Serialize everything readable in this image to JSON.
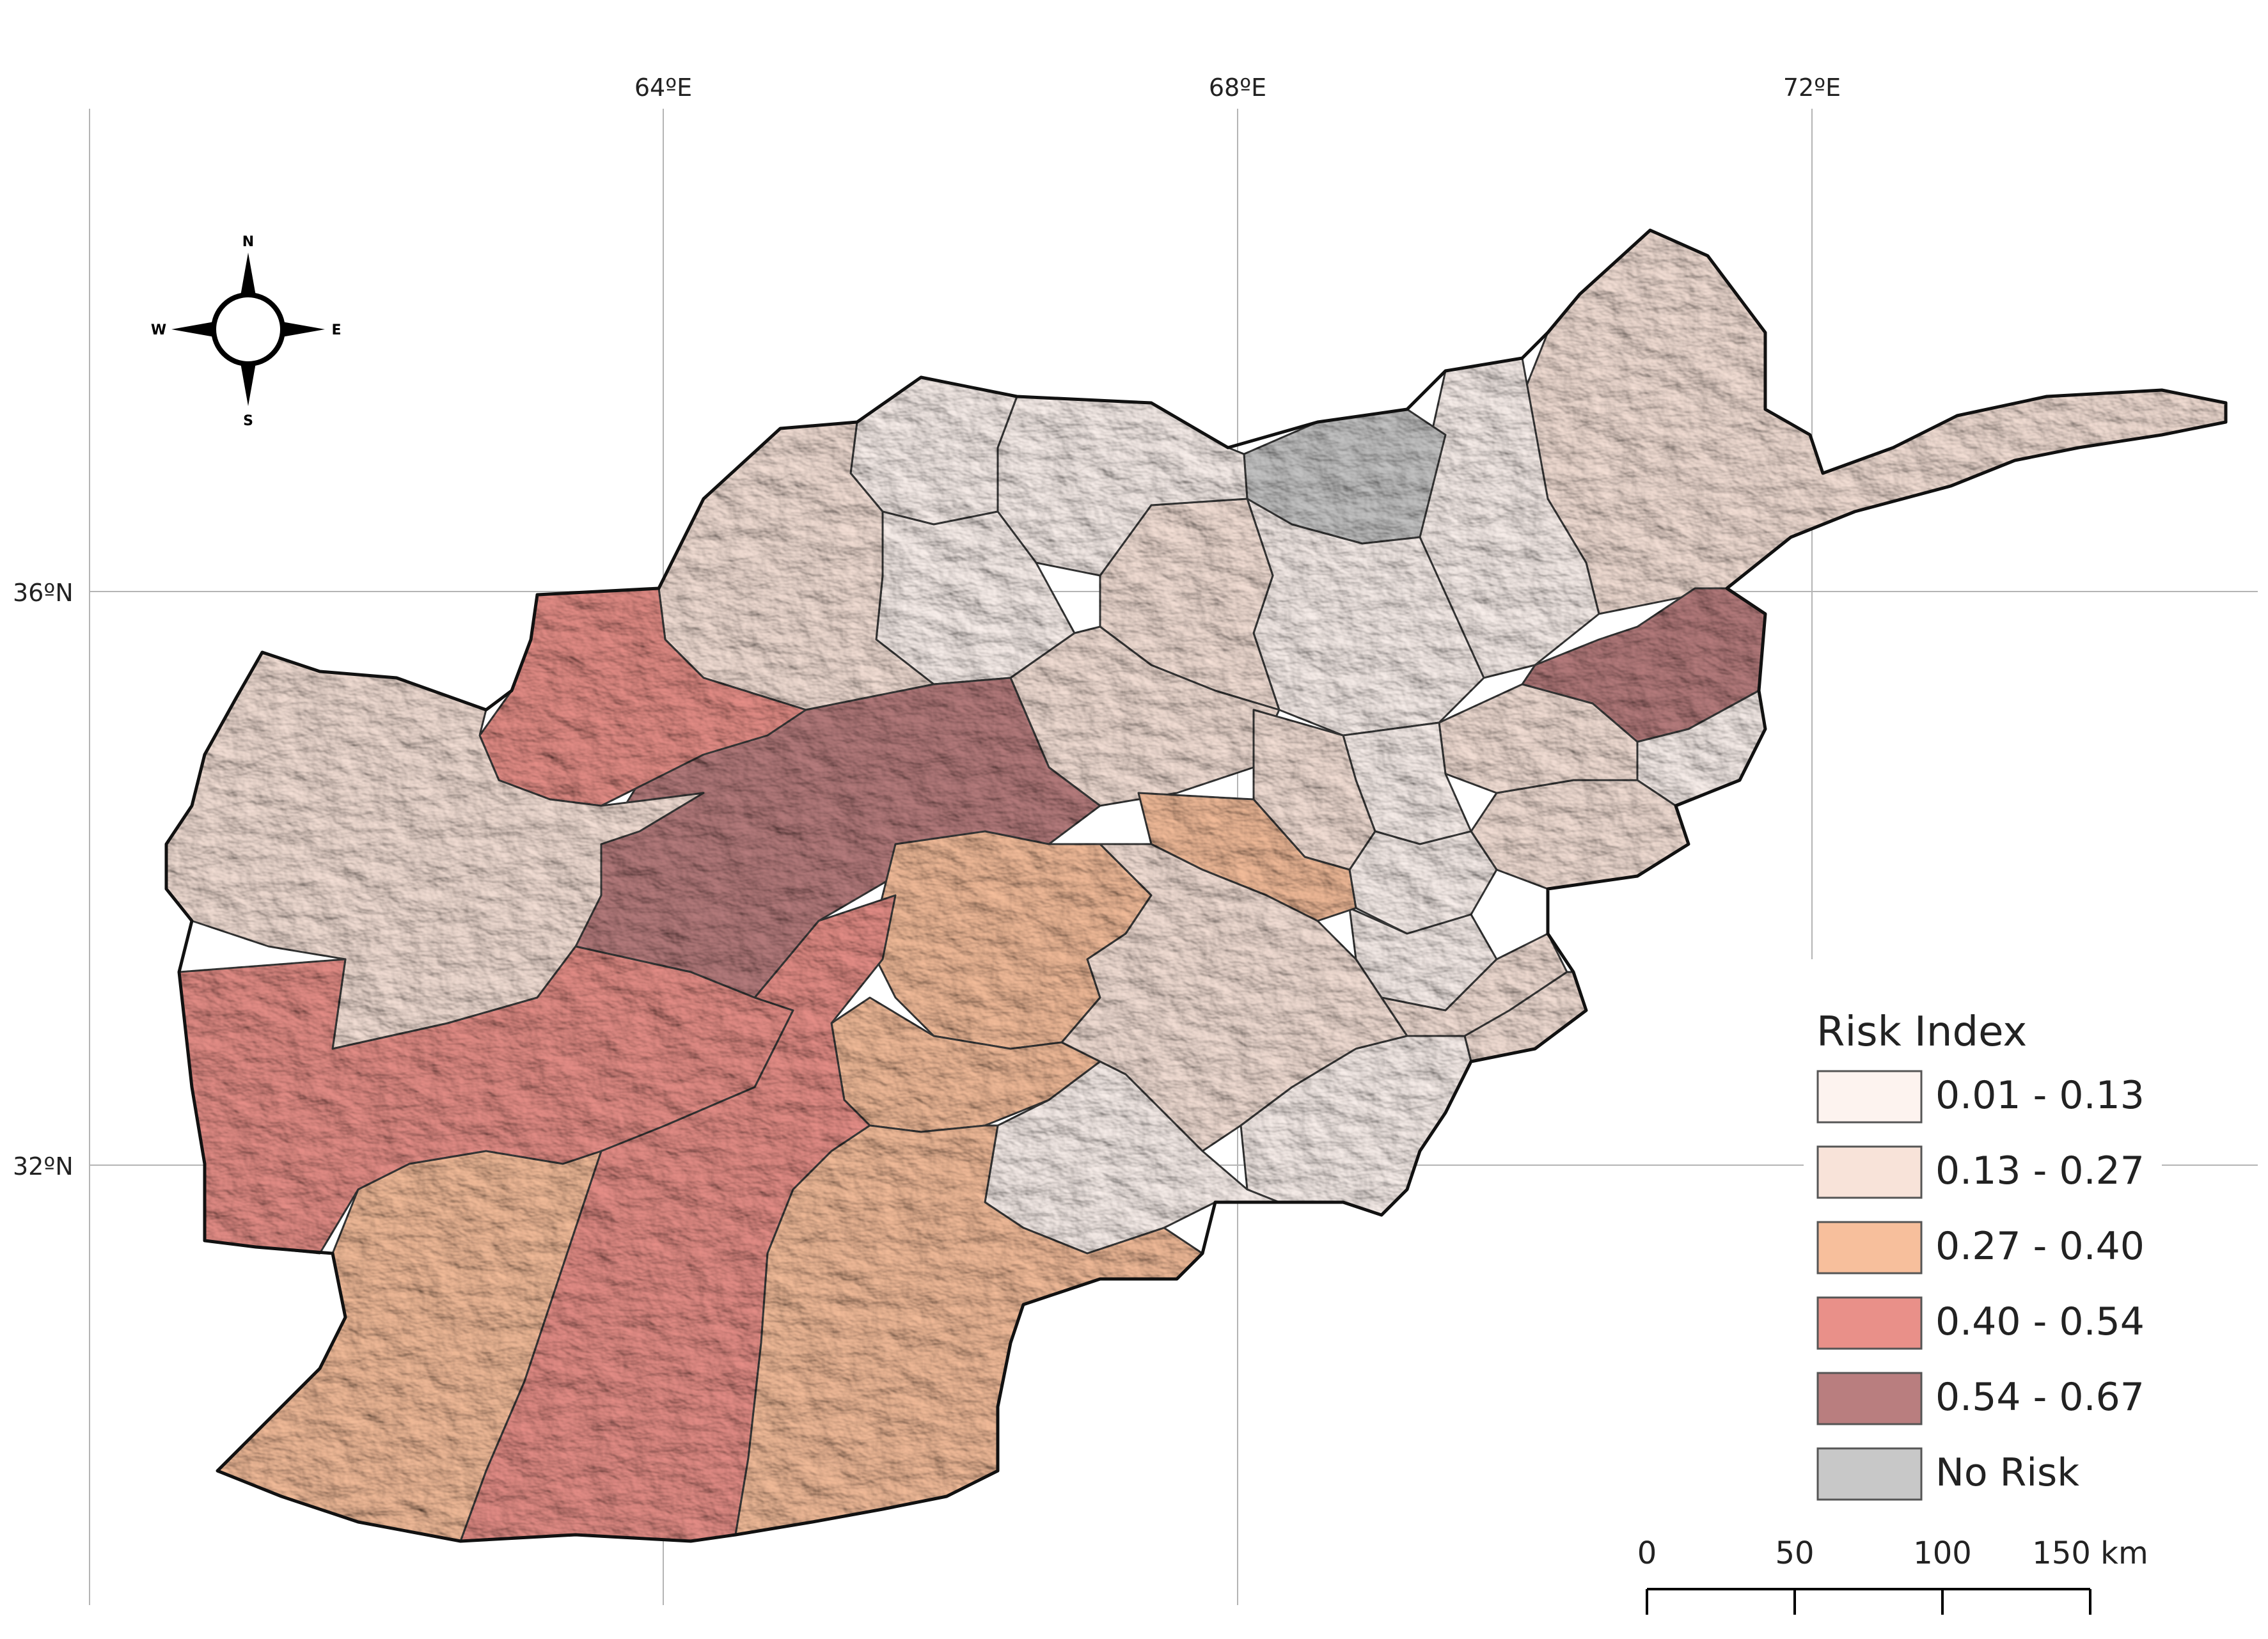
{
  "graticule": {
    "lon_labels": [
      "64ºE",
      "68ºE",
      "72ºE"
    ],
    "lat_labels": [
      "36ºN",
      "32ºN"
    ]
  },
  "compass": {
    "n": "N",
    "s": "S",
    "e": "E",
    "w": "W"
  },
  "legend": {
    "title": "Risk Index",
    "classes": [
      {
        "label": "0.01 - 0.13",
        "color": "#fdf3ef"
      },
      {
        "label": "0.13 - 0.27",
        "color": "#f8e3d9"
      },
      {
        "label": "0.27 - 0.40",
        "color": "#f7bf9c"
      },
      {
        "label": "0.40 - 0.54",
        "color": "#e99089"
      },
      {
        "label": "0.54 - 0.67",
        "color": "#b97e7f"
      },
      {
        "label": "No Risk",
        "color": "#c8c8c8"
      }
    ]
  },
  "scale_bar": {
    "labels": [
      "0",
      "50",
      "100",
      "150 km"
    ]
  },
  "colors": {
    "grid": "#b4b4b4",
    "border": "#111111",
    "internal_border": "#3a3a3a"
  }
}
